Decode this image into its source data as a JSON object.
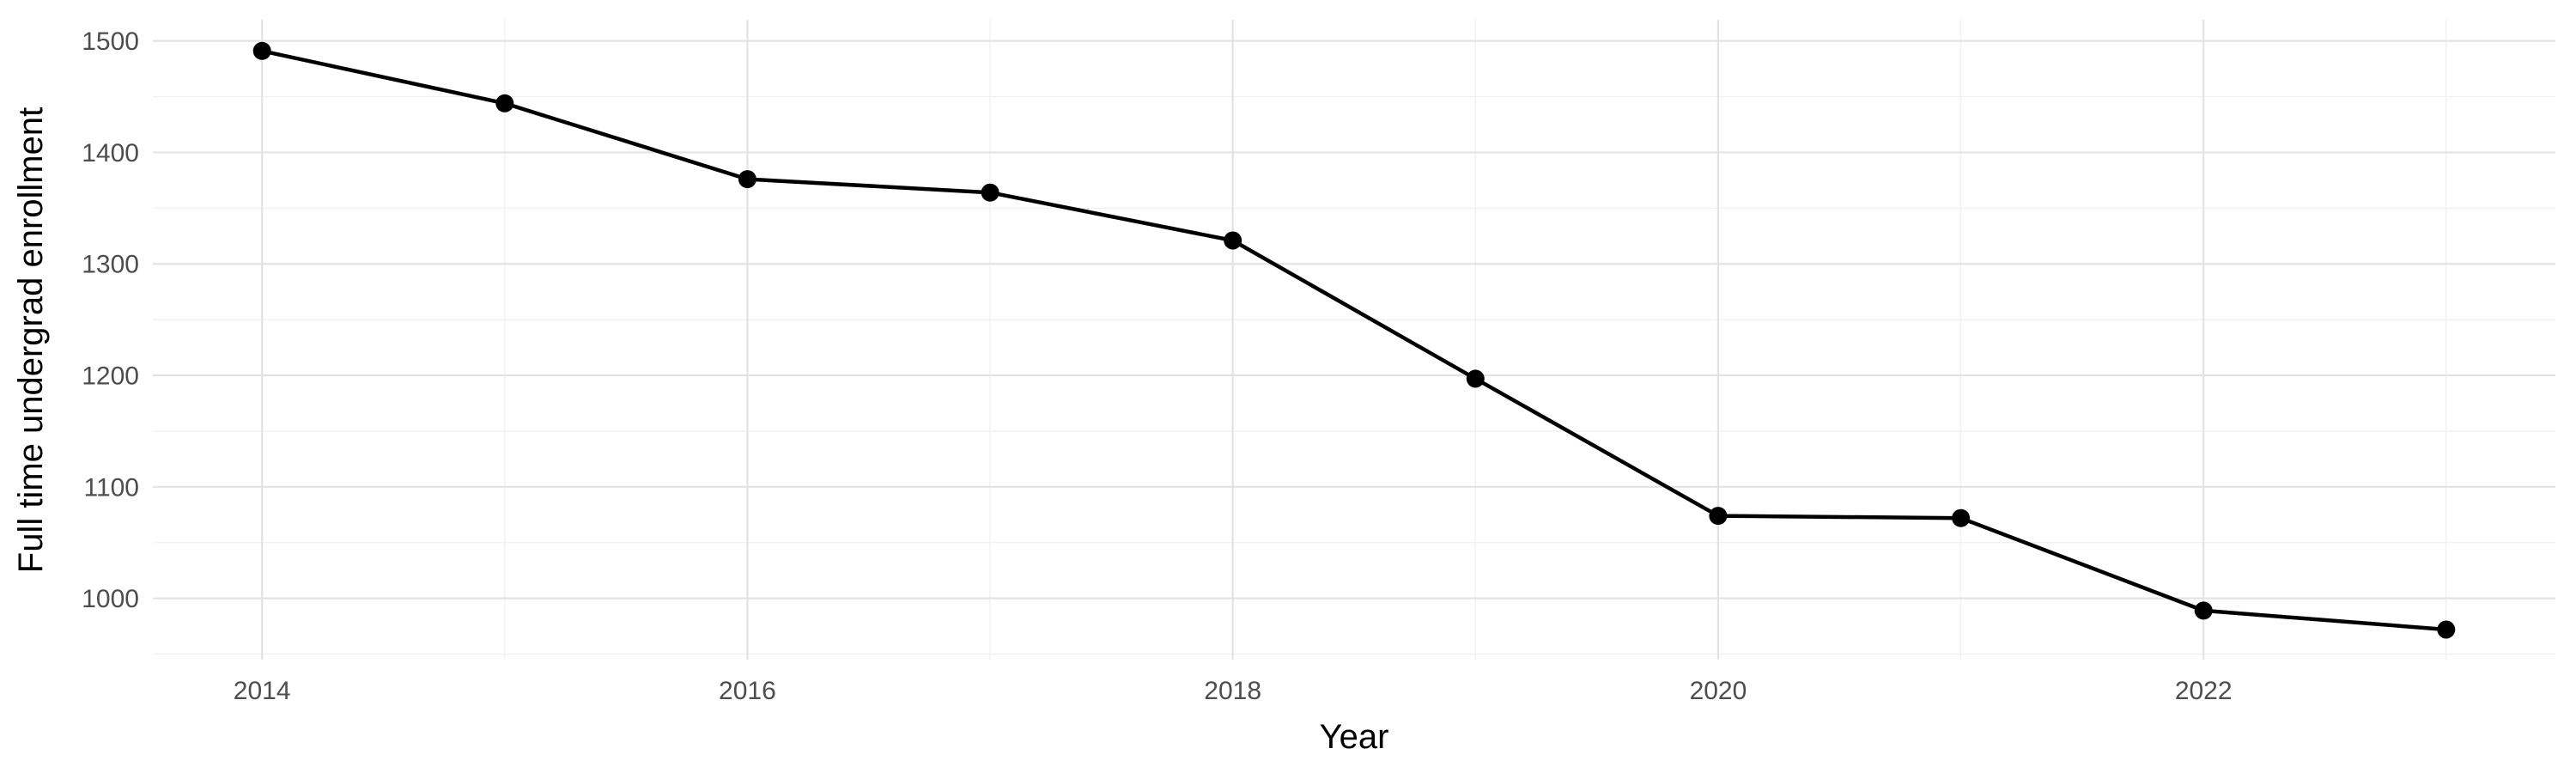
{
  "chart_data": {
    "type": "line",
    "title": "",
    "xlabel": "Year",
    "ylabel": "Full time undergrad enrollment",
    "x": [
      2014,
      2015,
      2016,
      2017,
      2018,
      2019,
      2020,
      2021,
      2022,
      2023
    ],
    "series": [
      {
        "name": "Full time undergrad enrollment",
        "values": [
          1491,
          1444,
          1376,
          1364,
          1321,
          1197,
          1074,
          1072,
          989,
          972
        ]
      }
    ],
    "x_tick_labels": [
      "2014",
      "2016",
      "2018",
      "2020",
      "2022"
    ],
    "x_tick_values": [
      2014,
      2016,
      2018,
      2020,
      2022
    ],
    "x_minor_gridlines": [
      2015,
      2017,
      2019,
      2021,
      2023
    ],
    "y_tick_labels": [
      "1000",
      "1100",
      "1200",
      "1300",
      "1400",
      "1500"
    ],
    "y_tick_values": [
      1000,
      1100,
      1200,
      1300,
      1400,
      1500
    ],
    "y_minor_gridlines": [
      950,
      1050,
      1150,
      1250,
      1350,
      1450
    ],
    "xlim": [
      2013.55,
      2023.45
    ],
    "ylim": [
      945,
      1519
    ],
    "grid": "major and minor gridlines, no axis lines, no tick marks",
    "legend": "none",
    "marker": "filled-circle",
    "colors": {
      "line": "#000000",
      "point": "#000000",
      "grid_major": "#E3E3E3",
      "grid_minor": "#F1F1F1",
      "tick_label": "#4D4D4D",
      "axis_title": "#000000",
      "background": "#FFFFFF"
    }
  }
}
